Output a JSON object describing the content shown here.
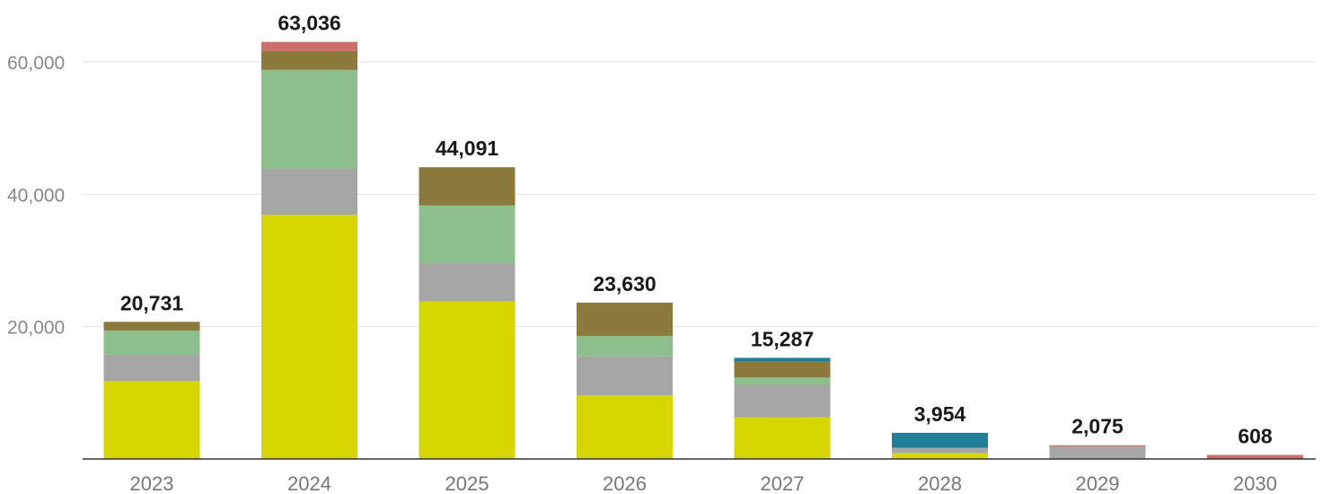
{
  "chart_data": {
    "type": "bar",
    "stacked": true,
    "categories": [
      "2023",
      "2024",
      "2025",
      "2026",
      "2027",
      "2028",
      "2029",
      "2030"
    ],
    "series": [
      {
        "color": "#d6d600",
        "values": [
          11800,
          36900,
          23800,
          9600,
          6300,
          900,
          0,
          0
        ]
      },
      {
        "color": "#a6a6a6",
        "values": [
          4000,
          7000,
          5800,
          5900,
          4900,
          800,
          1900,
          0
        ]
      },
      {
        "color": "#8cbf8c",
        "values": [
          3600,
          14900,
          8700,
          3100,
          1100,
          0,
          0,
          0
        ]
      },
      {
        "color": "#8c7a3c",
        "values": [
          1331,
          2836,
          5791,
          5030,
          2387,
          0,
          0,
          0
        ]
      },
      {
        "color": "#1f7f99",
        "values": [
          0,
          0,
          0,
          0,
          600,
          2254,
          0,
          0
        ]
      },
      {
        "color": "#cc6e6e",
        "values": [
          0,
          1400,
          0,
          0,
          0,
          0,
          175,
          608
        ]
      }
    ],
    "totals": [
      "20,731",
      "63,036",
      "44,091",
      "23,630",
      "15,287",
      "3,954",
      "2,075",
      "608"
    ],
    "yticks": [
      "20,000",
      "40,000",
      "60,000"
    ],
    "ytick_values": [
      20000,
      40000,
      60000
    ],
    "ylim": [
      0,
      65000
    ],
    "grid": true,
    "legend": "none"
  }
}
